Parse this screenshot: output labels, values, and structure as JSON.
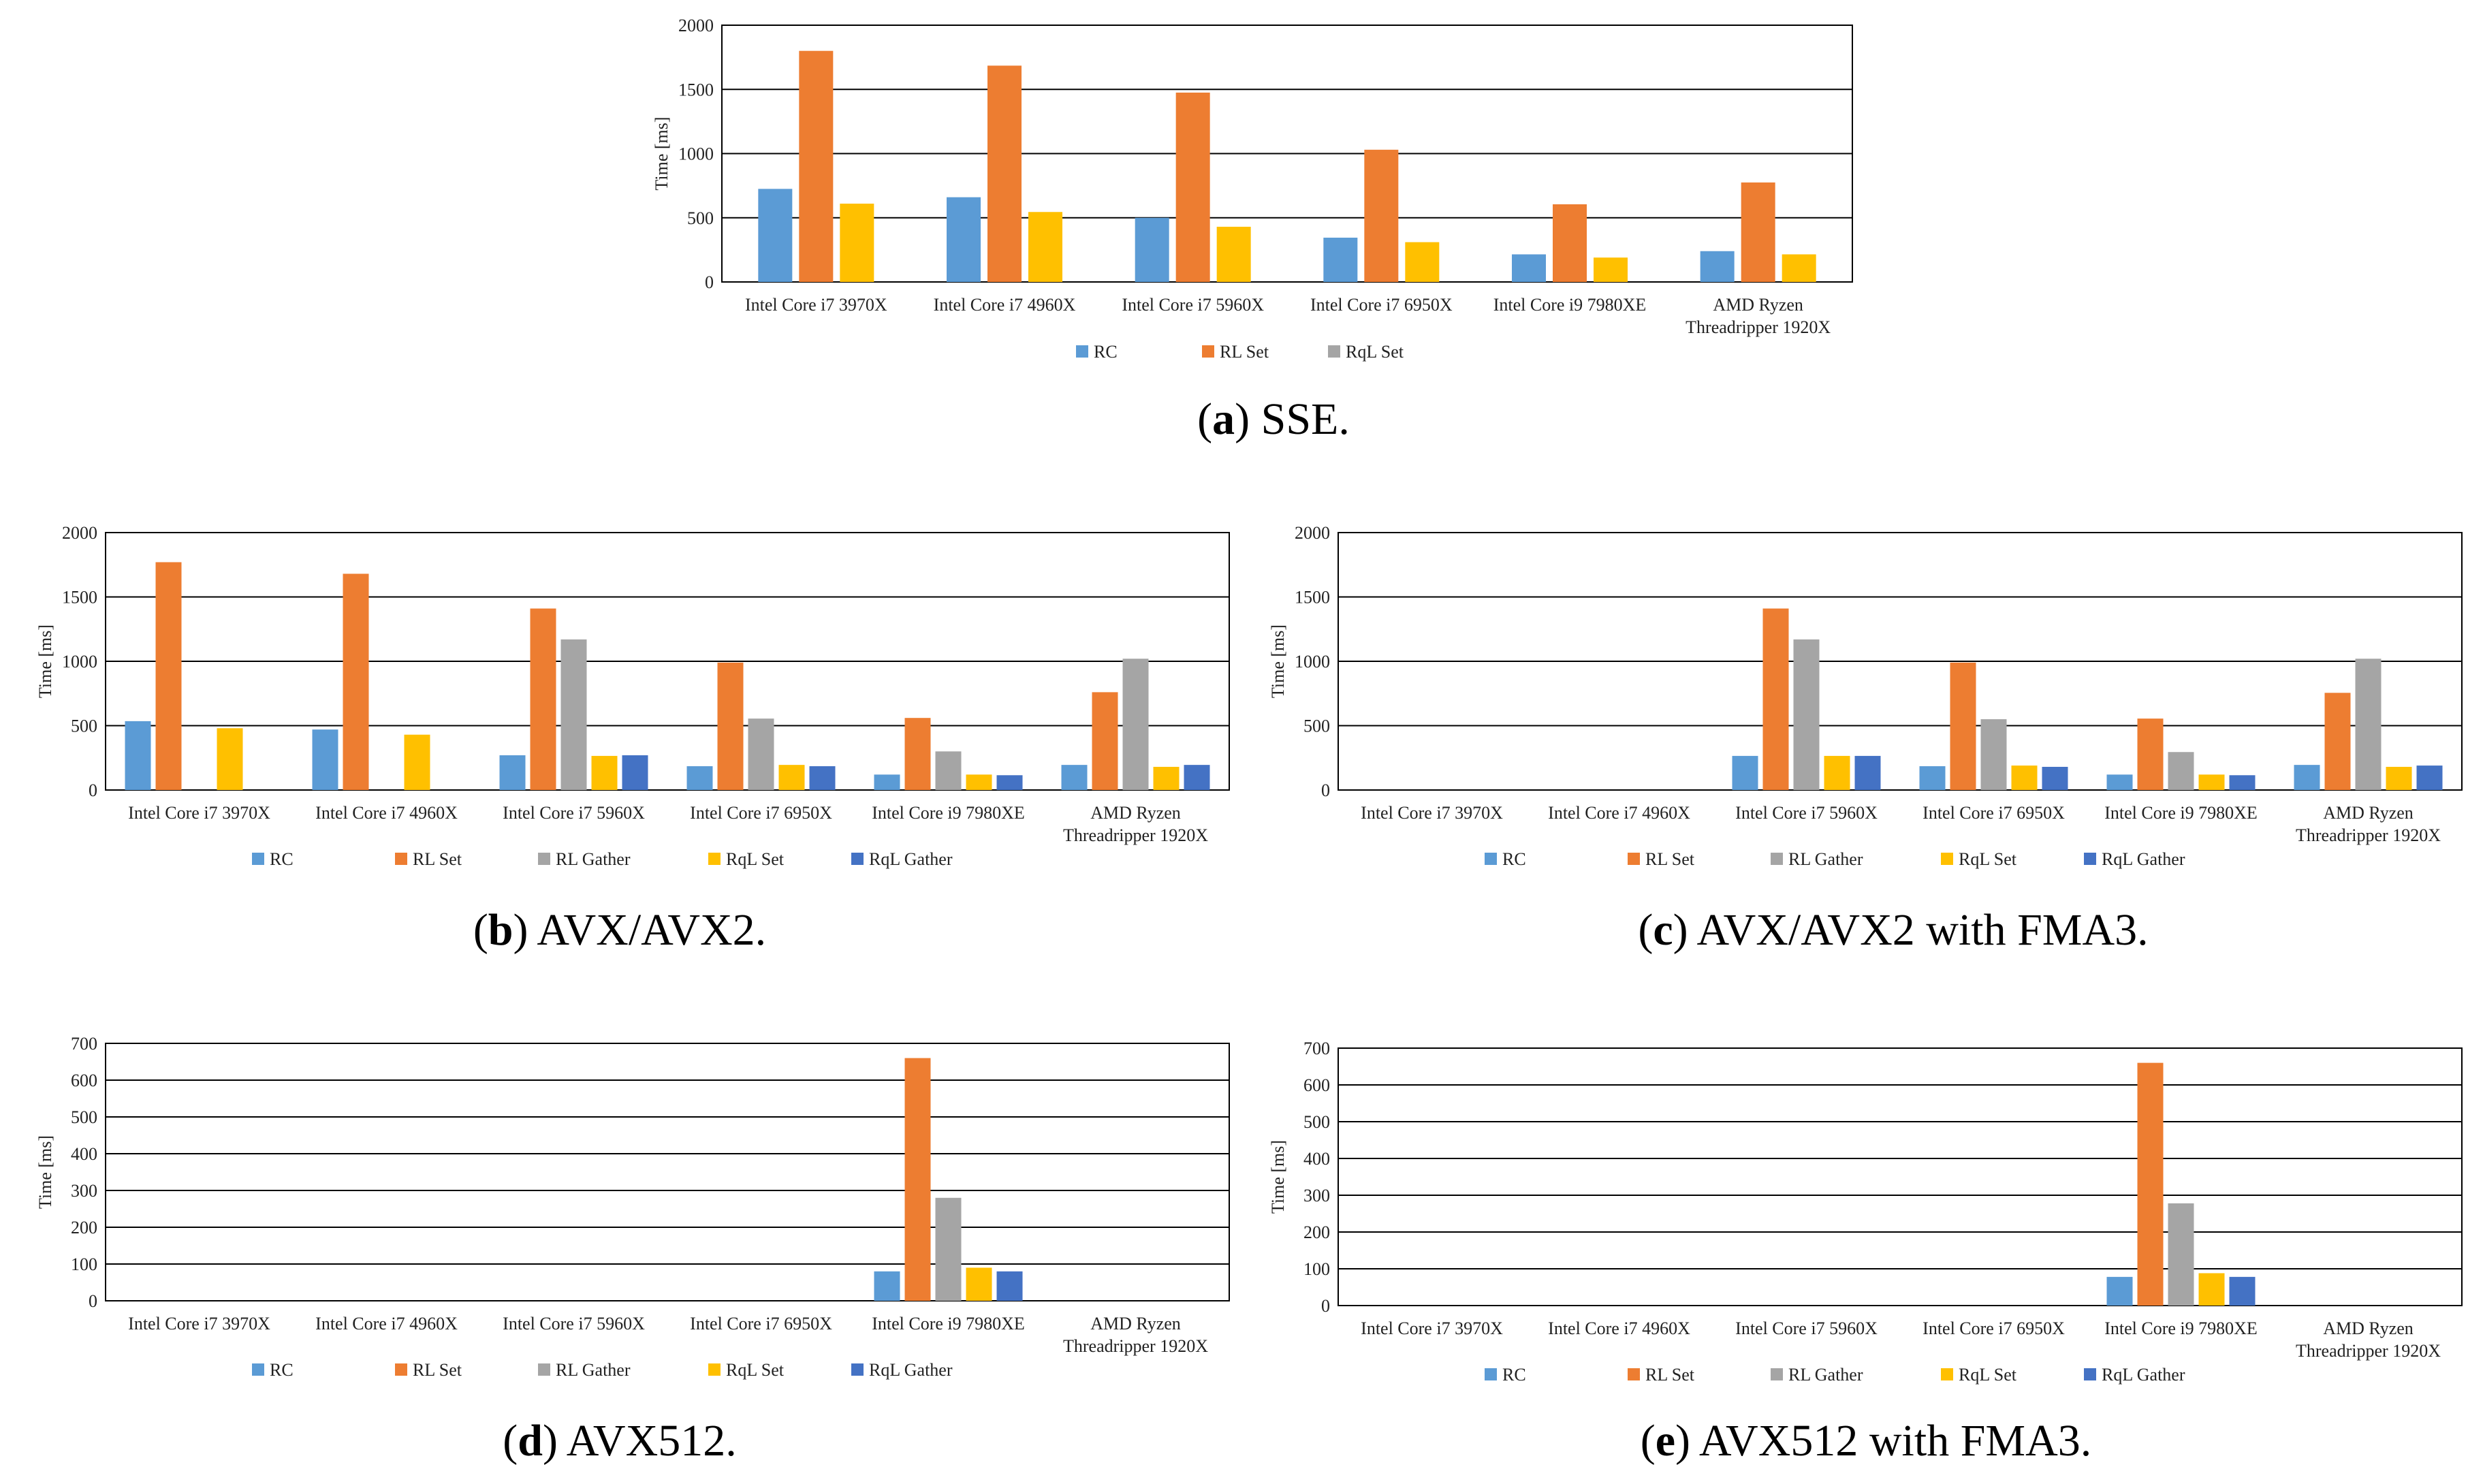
{
  "series_colors": {
    "RC": "#5b9bd5",
    "RL Set": "#ed7d31",
    "RL Gather": "#a5a5a5",
    "RqL Set": "#ffc000",
    "RqL Gather": "#4472c4"
  },
  "chart_data": [
    {
      "id": "a",
      "type": "bar",
      "caption_letter": "a",
      "caption_text": "SSE.",
      "ylabel": "Time [ms]",
      "ylim": [
        0,
        2000
      ],
      "yticks": [
        0,
        500,
        1000,
        1500,
        2000
      ],
      "categories": [
        "Intel Core i7 3970X",
        "Intel Core i7 4960X",
        "Intel Core i7 5960X",
        "Intel Core i7 6950X",
        "Intel Core i9 7980XE",
        "AMD Ryzen\nThreadripper 1920X"
      ],
      "series": [
        {
          "name": "RC",
          "values": [
            725,
            660,
            500,
            345,
            215,
            240
          ]
        },
        {
          "name": "RL Set",
          "values": [
            1800,
            1685,
            1475,
            1030,
            605,
            775
          ]
        },
        {
          "name": "RqL Set",
          "values": [
            610,
            545,
            430,
            310,
            190,
            215
          ]
        }
      ],
      "legend": [
        "RC",
        "RL Set",
        "RqL Set"
      ],
      "legend_colors": [
        "#5b9bd5",
        "#ed7d31",
        "#a5a5a5"
      ]
    },
    {
      "id": "b",
      "type": "bar",
      "caption_letter": "b",
      "caption_text": "AVX/AVX2.",
      "ylabel": "Time [ms]",
      "ylim": [
        0,
        2000
      ],
      "yticks": [
        0,
        500,
        1000,
        1500,
        2000
      ],
      "categories": [
        "Intel Core i7 3970X",
        "Intel Core i7 4960X",
        "Intel Core i7 5960X",
        "Intel Core i7 6950X",
        "Intel Core i9 7980XE",
        "AMD Ryzen\nThreadripper 1920X"
      ],
      "series": [
        {
          "name": "RC",
          "values": [
            535,
            470,
            270,
            185,
            120,
            195
          ]
        },
        {
          "name": "RL Set",
          "values": [
            1770,
            1680,
            1410,
            990,
            560,
            760
          ]
        },
        {
          "name": "RL Gather",
          "values": [
            0,
            0,
            1170,
            555,
            300,
            1020
          ]
        },
        {
          "name": "RqL Set",
          "values": [
            480,
            430,
            265,
            195,
            120,
            180
          ]
        },
        {
          "name": "RqL Gather",
          "values": [
            0,
            0,
            270,
            185,
            115,
            195
          ]
        }
      ],
      "legend": [
        "RC",
        "RL Set",
        "RL Gather",
        "RqL Set",
        "RqL Gather"
      ]
    },
    {
      "id": "c",
      "type": "bar",
      "caption_letter": "c",
      "caption_text": "AVX/AVX2 with FMA3.",
      "ylabel": "Time [ms]",
      "ylim": [
        0,
        2000
      ],
      "yticks": [
        0,
        500,
        1000,
        1500,
        2000
      ],
      "categories": [
        "Intel Core i7 3970X",
        "Intel Core i7 4960X",
        "Intel Core i7 5960X",
        "Intel Core i7 6950X",
        "Intel Core i9 7980XE",
        "AMD Ryzen\nThreadripper 1920X"
      ],
      "series": [
        {
          "name": "RC",
          "values": [
            0,
            0,
            265,
            185,
            120,
            195
          ]
        },
        {
          "name": "RL Set",
          "values": [
            0,
            0,
            1410,
            990,
            555,
            755
          ]
        },
        {
          "name": "RL Gather",
          "values": [
            0,
            0,
            1170,
            550,
            295,
            1020
          ]
        },
        {
          "name": "RqL Set",
          "values": [
            0,
            0,
            265,
            190,
            120,
            180
          ]
        },
        {
          "name": "RqL Gather",
          "values": [
            0,
            0,
            265,
            180,
            115,
            190
          ]
        }
      ],
      "legend": [
        "RC",
        "RL Set",
        "RL Gather",
        "RqL Set",
        "RqL Gather"
      ]
    },
    {
      "id": "d",
      "type": "bar",
      "caption_letter": "d",
      "caption_text": "AVX512.",
      "ylabel": "Time [ms]",
      "ylim": [
        0,
        700
      ],
      "yticks": [
        0,
        100,
        200,
        300,
        400,
        500,
        600,
        700
      ],
      "categories": [
        "Intel Core i7 3970X",
        "Intel Core i7 4960X",
        "Intel Core i7 5960X",
        "Intel Core i7 6950X",
        "Intel Core i9 7980XE",
        "AMD Ryzen\nThreadripper 1920X"
      ],
      "series": [
        {
          "name": "RC",
          "values": [
            0,
            0,
            0,
            0,
            80,
            0
          ]
        },
        {
          "name": "RL Set",
          "values": [
            0,
            0,
            0,
            0,
            660,
            0
          ]
        },
        {
          "name": "RL Gather",
          "values": [
            0,
            0,
            0,
            0,
            280,
            0
          ]
        },
        {
          "name": "RqL Set",
          "values": [
            0,
            0,
            0,
            0,
            90,
            0
          ]
        },
        {
          "name": "RqL Gather",
          "values": [
            0,
            0,
            0,
            0,
            80,
            0
          ]
        }
      ],
      "legend": [
        "RC",
        "RL Set",
        "RL Gather",
        "RqL Set",
        "RqL Gather"
      ]
    },
    {
      "id": "e",
      "type": "bar",
      "caption_letter": "e",
      "caption_text": "AVX512 with FMA3.",
      "ylabel": "Time [ms]",
      "ylim": [
        0,
        700
      ],
      "yticks": [
        0,
        100,
        200,
        300,
        400,
        500,
        600,
        700
      ],
      "categories": [
        "Intel Core i7 3970X",
        "Intel Core i7 4960X",
        "Intel Core i7 5960X",
        "Intel Core i7 6950X",
        "Intel Core i9 7980XE",
        "AMD Ryzen\nThreadripper 1920X"
      ],
      "series": [
        {
          "name": "RC",
          "values": [
            0,
            0,
            0,
            0,
            78,
            0
          ]
        },
        {
          "name": "RL Set",
          "values": [
            0,
            0,
            0,
            0,
            660,
            0
          ]
        },
        {
          "name": "RL Gather",
          "values": [
            0,
            0,
            0,
            0,
            278,
            0
          ]
        },
        {
          "name": "RqL Set",
          "values": [
            0,
            0,
            0,
            0,
            88,
            0
          ]
        },
        {
          "name": "RqL Gather",
          "values": [
            0,
            0,
            0,
            0,
            78,
            0
          ]
        }
      ],
      "legend": [
        "RC",
        "RL Set",
        "RL Gather",
        "RqL Set",
        "RqL Gather"
      ]
    }
  ]
}
